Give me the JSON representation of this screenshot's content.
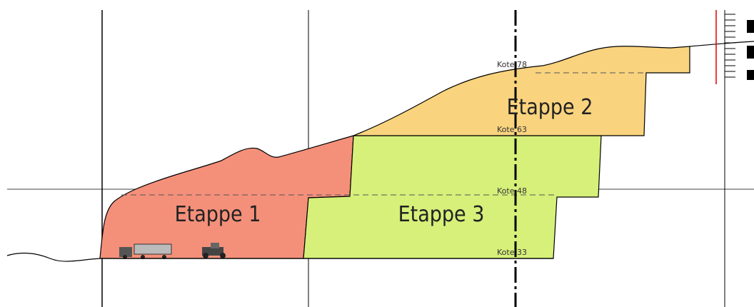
{
  "stages": [
    {
      "label": "Etappe 1"
    },
    {
      "label": "Etappe 2"
    },
    {
      "label": "Etappe 3"
    }
  ],
  "levels": [
    {
      "label": "Kote 78"
    },
    {
      "label": "Kote 63"
    },
    {
      "label": "Kote 48"
    },
    {
      "label": "Kote 33"
    }
  ]
}
